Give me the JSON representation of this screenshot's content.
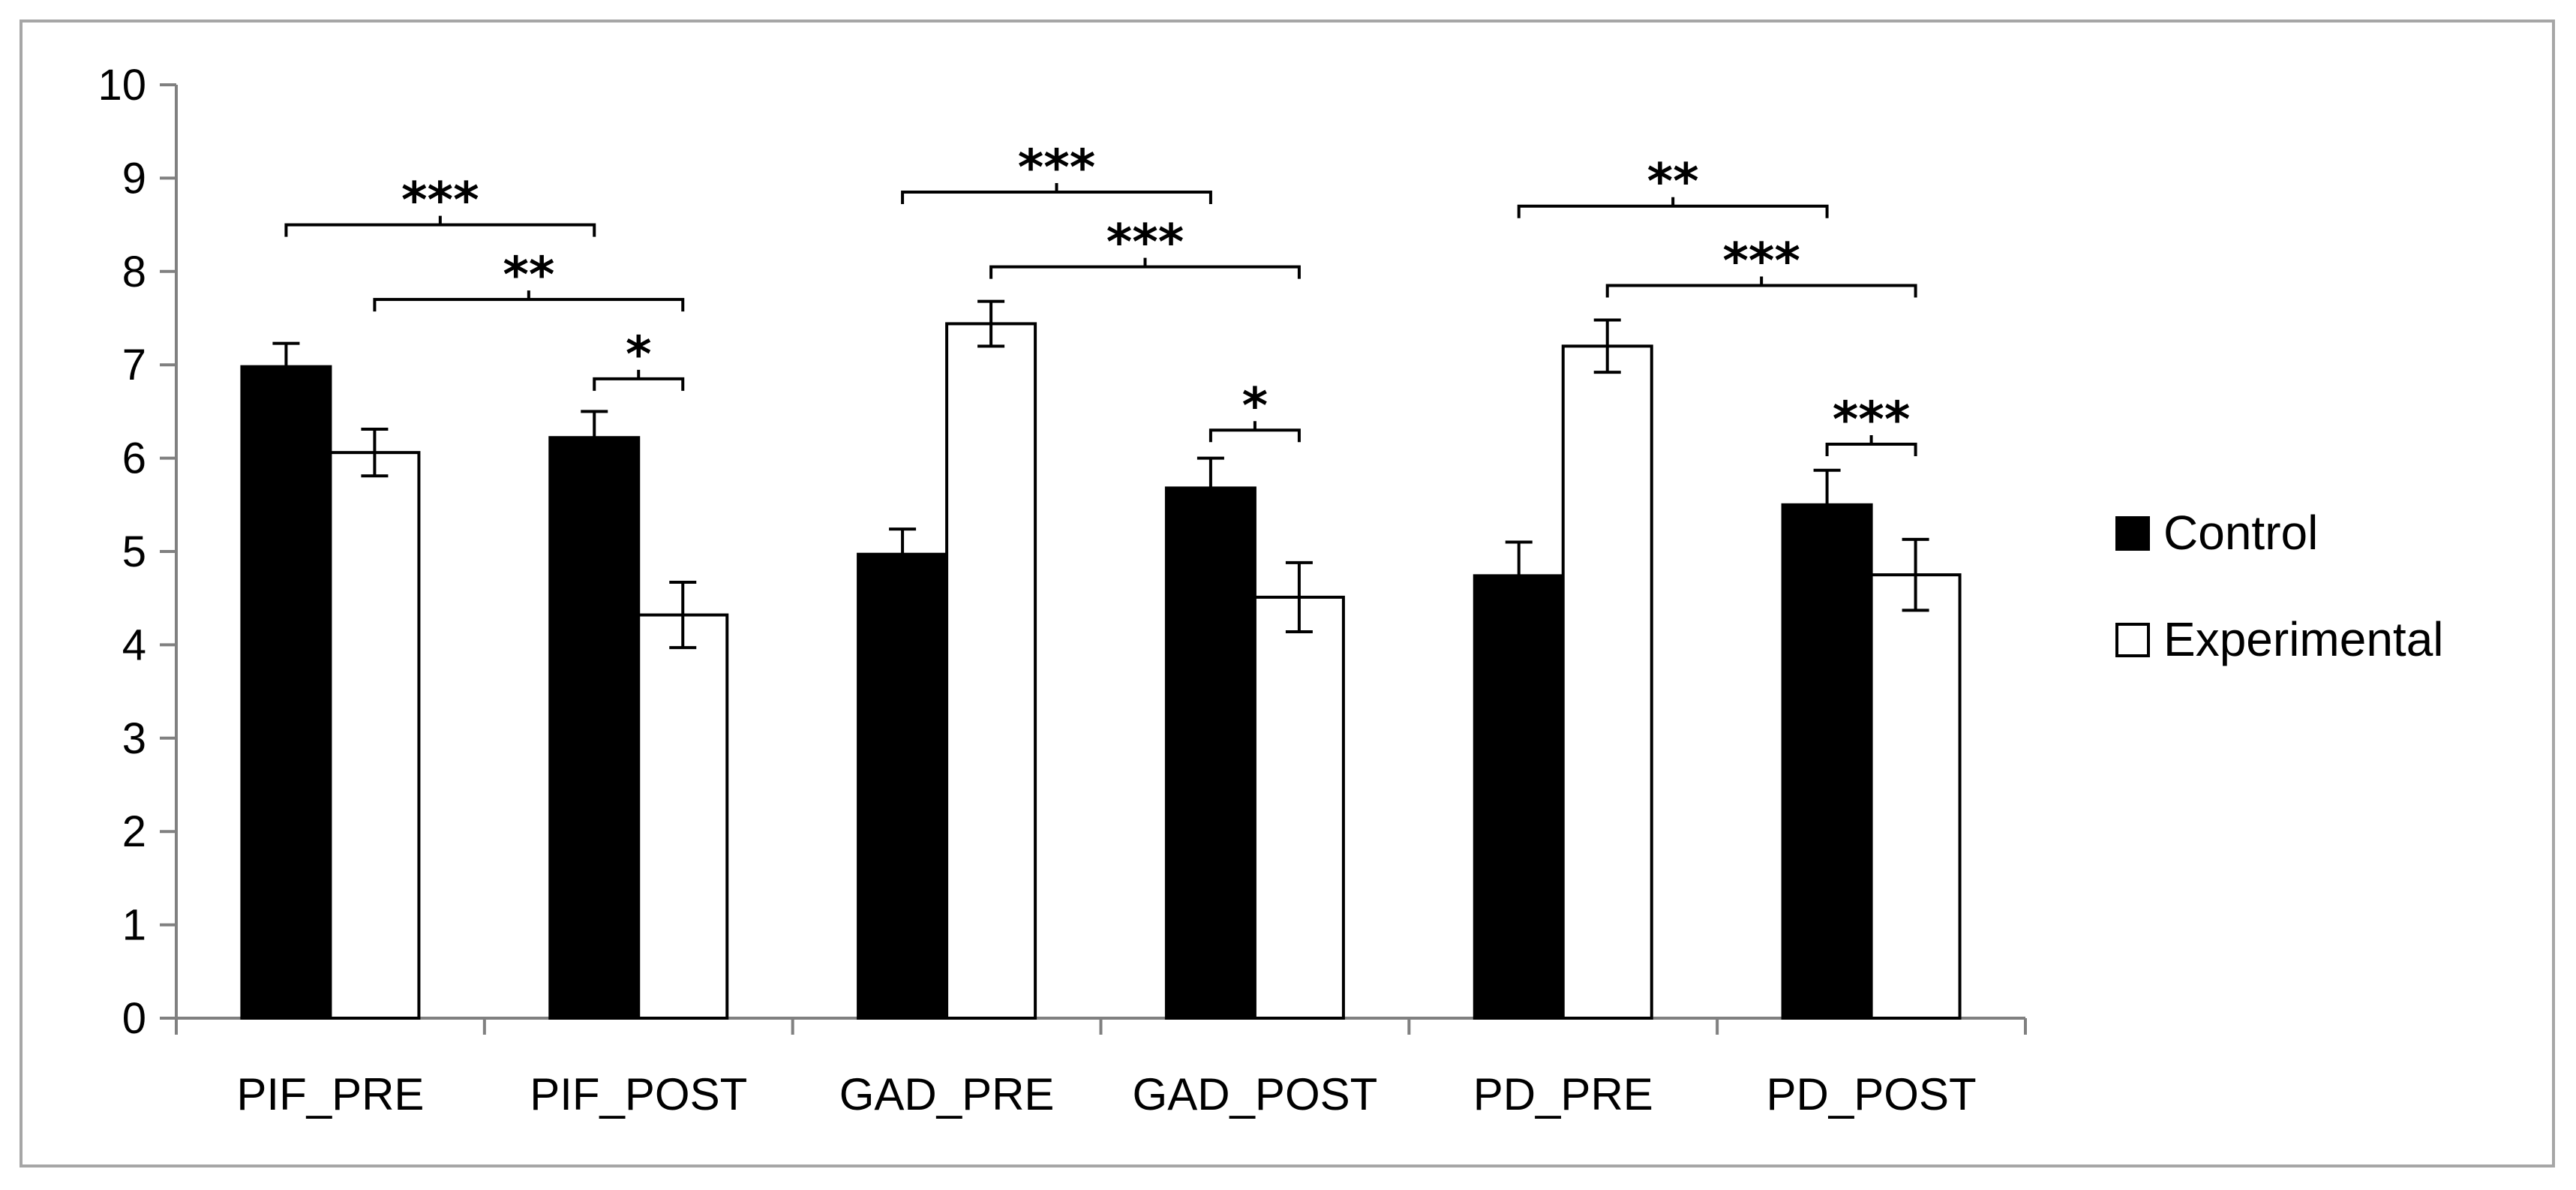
{
  "chart_data": {
    "type": "bar",
    "title": "",
    "xlabel": "",
    "ylabel": "",
    "ylim": [
      0,
      10
    ],
    "yticks": [
      "0",
      "1",
      "2",
      "3",
      "4",
      "5",
      "6",
      "7",
      "8",
      "9",
      "10"
    ],
    "categories": [
      "PIF_PRE",
      "PIF_POST",
      "GAD_PRE",
      "GAD_POST",
      "PD_PRE",
      "PD_POST"
    ],
    "series": [
      {
        "name": "Control",
        "color": "#000000",
        "values": [
          6.98,
          6.22,
          4.97,
          5.68,
          4.74,
          5.5
        ],
        "errors": [
          0.25,
          0.28,
          0.27,
          0.32,
          0.36,
          0.37
        ]
      },
      {
        "name": "Experimental",
        "color": "#ffffff",
        "values": [
          6.06,
          4.32,
          7.44,
          4.51,
          7.2,
          4.75
        ],
        "errors": [
          0.25,
          0.35,
          0.24,
          0.37,
          0.28,
          0.38
        ]
      }
    ],
    "legend": {
      "position": "right",
      "entries": [
        "Control",
        "Experimental"
      ]
    },
    "significance": [
      {
        "from_category": 0,
        "from_series": 0,
        "to_category": 1,
        "to_series": 0,
        "y": 8.5,
        "label": "***"
      },
      {
        "from_category": 0,
        "from_series": 1,
        "to_category": 1,
        "to_series": 1,
        "y": 7.7,
        "label": "**"
      },
      {
        "from_category": 1,
        "from_series": 0,
        "to_category": 1,
        "to_series": 1,
        "y": 6.85,
        "label": "*"
      },
      {
        "from_category": 2,
        "from_series": 0,
        "to_category": 3,
        "to_series": 0,
        "y": 8.85,
        "label": "***"
      },
      {
        "from_category": 2,
        "from_series": 1,
        "to_category": 3,
        "to_series": 1,
        "y": 8.05,
        "label": "***"
      },
      {
        "from_category": 3,
        "from_series": 0,
        "to_category": 3,
        "to_series": 1,
        "y": 6.3,
        "label": "*"
      },
      {
        "from_category": 4,
        "from_series": 0,
        "to_category": 5,
        "to_series": 0,
        "y": 8.7,
        "label": "**"
      },
      {
        "from_category": 4,
        "from_series": 1,
        "to_category": 5,
        "to_series": 1,
        "y": 7.85,
        "label": "***"
      },
      {
        "from_category": 5,
        "from_series": 0,
        "to_category": 5,
        "to_series": 1,
        "y": 6.15,
        "label": "***"
      }
    ]
  }
}
